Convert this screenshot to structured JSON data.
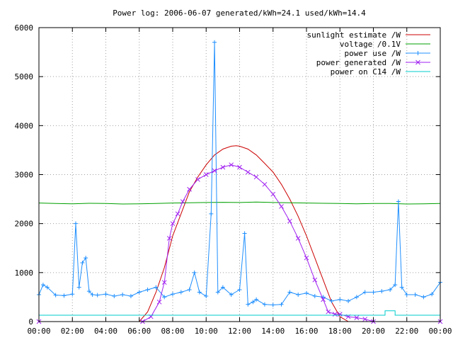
{
  "chart_data": {
    "type": "line",
    "title": "Power log: 2006-06-07 generated/kWh=24.1 used/kWh=14.4",
    "xlabel": "",
    "ylabel": "",
    "x_unit": "hours",
    "xlim": [
      0,
      24
    ],
    "ylim": [
      0,
      6000
    ],
    "x_ticks": [
      0,
      2,
      4,
      6,
      8,
      10,
      12,
      14,
      16,
      18,
      20,
      22,
      24
    ],
    "x_tick_labels": [
      "00:00",
      "02:00",
      "04:00",
      "06:00",
      "08:00",
      "10:00",
      "12:00",
      "14:00",
      "16:00",
      "18:00",
      "20:00",
      "22:00",
      "00:00"
    ],
    "y_ticks": [
      0,
      1000,
      2000,
      3000,
      4000,
      5000,
      6000
    ],
    "y_tick_labels": [
      "0",
      "1000",
      "2000",
      "3000",
      "4000",
      "5000",
      "6000"
    ],
    "grid": true,
    "legend_position": "top-right",
    "series": [
      {
        "name": "sunlight estimate /W",
        "color": "#cc0000",
        "marker": "none",
        "x": [
          5.5,
          6,
          6.5,
          7,
          7.5,
          8,
          8.5,
          9,
          9.5,
          10,
          10.5,
          11,
          11.5,
          11.8,
          12,
          12.5,
          13,
          13.5,
          14,
          14.5,
          15,
          15.5,
          16,
          16.5,
          17,
          17.5,
          18,
          18.5
        ],
        "y": [
          0,
          0,
          200,
          600,
          1100,
          1750,
          2200,
          2650,
          2950,
          3200,
          3400,
          3520,
          3580,
          3590,
          3580,
          3520,
          3400,
          3230,
          3050,
          2800,
          2500,
          2150,
          1750,
          1300,
          850,
          400,
          100,
          0
        ]
      },
      {
        "name": "voltage /0.1V",
        "color": "#00a000",
        "marker": "none",
        "x": [
          0,
          1,
          2,
          3,
          4,
          5,
          6,
          7,
          8,
          9,
          10,
          11,
          12,
          13,
          14,
          15,
          16,
          17,
          18,
          19,
          20,
          21,
          22,
          23,
          24
        ],
        "y": [
          2420,
          2410,
          2405,
          2415,
          2410,
          2400,
          2405,
          2410,
          2420,
          2425,
          2430,
          2435,
          2430,
          2440,
          2430,
          2425,
          2420,
          2415,
          2410,
          2405,
          2410,
          2410,
          2400,
          2405,
          2410
        ]
      },
      {
        "name": "power use /W",
        "color": "#1f8fff",
        "marker": "plus",
        "x": [
          0,
          0.25,
          0.5,
          1,
          1.5,
          2,
          2.2,
          2.4,
          2.6,
          2.8,
          3,
          3.2,
          3.5,
          4,
          4.5,
          5,
          5.5,
          6,
          6.5,
          7,
          7.5,
          8,
          8.5,
          9,
          9.3,
          9.6,
          10,
          10.3,
          10.5,
          10.7,
          11,
          11.5,
          12,
          12.3,
          12.5,
          12.8,
          13,
          13.5,
          14,
          14.5,
          15,
          15.5,
          16,
          16.5,
          17,
          17.5,
          18,
          18.5,
          19,
          19.5,
          20,
          20.5,
          21,
          21.3,
          21.5,
          21.7,
          22,
          22.5,
          23,
          23.5,
          24
        ],
        "y": [
          550,
          750,
          700,
          540,
          530,
          560,
          2000,
          700,
          1200,
          1300,
          620,
          550,
          540,
          560,
          520,
          550,
          520,
          600,
          650,
          700,
          500,
          560,
          600,
          650,
          1000,
          600,
          520,
          2200,
          5700,
          600,
          700,
          550,
          650,
          1800,
          350,
          400,
          450,
          350,
          340,
          350,
          600,
          550,
          580,
          520,
          500,
          420,
          450,
          420,
          500,
          600,
          600,
          620,
          650,
          750,
          2450,
          700,
          550,
          550,
          500,
          560,
          800
        ]
      },
      {
        "name": "power generated /W",
        "color": "#a020f0",
        "marker": "cross",
        "x": [
          0,
          6.2,
          6.7,
          7.2,
          7.5,
          7.8,
          8,
          8.3,
          8.6,
          9,
          9.5,
          10,
          10.5,
          11,
          11.5,
          12,
          12.5,
          13,
          13.5,
          14,
          14.5,
          15,
          15.5,
          16,
          16.5,
          17,
          17.3,
          17.7,
          18,
          18.5,
          19,
          19.5,
          20,
          24
        ],
        "y": [
          0,
          0,
          100,
          400,
          800,
          1700,
          2000,
          2200,
          2450,
          2700,
          2900,
          3000,
          3080,
          3150,
          3200,
          3150,
          3050,
          2950,
          2800,
          2600,
          2350,
          2050,
          1700,
          1300,
          850,
          450,
          200,
          150,
          150,
          100,
          80,
          50,
          0,
          0
        ]
      },
      {
        "name": "power on C14 /W",
        "color": "#00cccc",
        "marker": "none",
        "x": [
          0,
          20.7,
          20.7,
          21.3,
          21.3,
          24
        ],
        "y": [
          130,
          130,
          220,
          220,
          130,
          130
        ]
      }
    ]
  }
}
